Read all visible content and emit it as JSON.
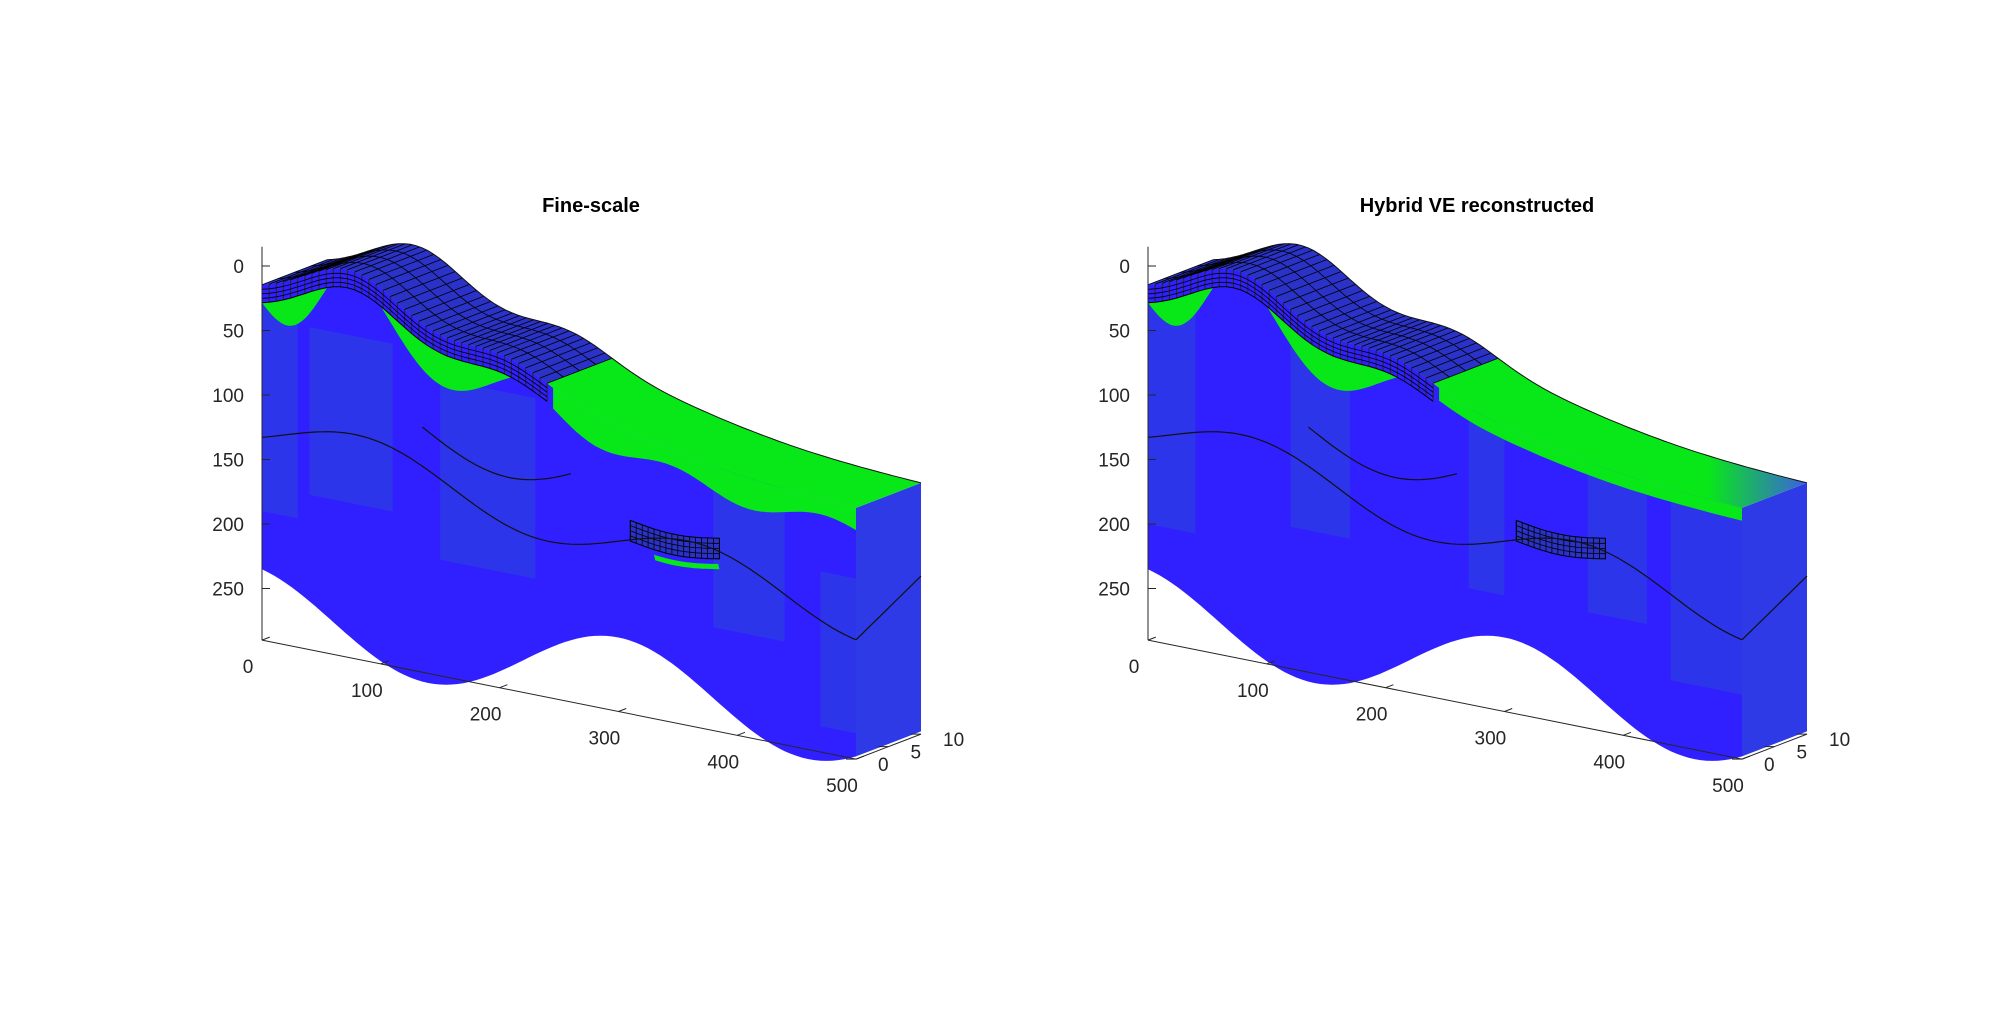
{
  "figure": {
    "background": "#ffffff"
  },
  "chart_data": [
    {
      "type": "heatmap",
      "title": "Fine-scale",
      "xlabel": "",
      "ylabel": "",
      "zlabel": "",
      "x_ticks": [
        "0",
        "100",
        "200",
        "300",
        "400",
        "500"
      ],
      "y_ticks": [
        "0",
        "5",
        "10"
      ],
      "z_ticks": [
        "0",
        "50",
        "100",
        "150",
        "200",
        "250"
      ],
      "xlim": [
        0,
        500
      ],
      "ylim": [
        0,
        10
      ],
      "zlim": [
        0,
        290
      ],
      "z_reversed": true,
      "view": "3d",
      "colors": {
        "brine": "#3020ff",
        "co2": "#08e818",
        "mixed": "#2d3ae6",
        "grid_lines": "#000000"
      },
      "features": [
        "wavy-top-surface",
        "co2-plume-under-caprock",
        "fine-grid-region-top",
        "fine-grid-region-lens",
        "internal-horizon-line",
        "internal-short-horizon-line"
      ]
    },
    {
      "type": "heatmap",
      "title": "Hybrid VE reconstructed",
      "xlabel": "",
      "ylabel": "",
      "zlabel": "",
      "x_ticks": [
        "0",
        "100",
        "200",
        "300",
        "400",
        "500"
      ],
      "y_ticks": [
        "0",
        "5",
        "10"
      ],
      "z_ticks": [
        "0",
        "50",
        "100",
        "150",
        "200",
        "250"
      ],
      "xlim": [
        0,
        500
      ],
      "ylim": [
        0,
        10
      ],
      "zlim": [
        0,
        290
      ],
      "z_reversed": true,
      "view": "3d",
      "colors": {
        "brine": "#3020ff",
        "co2": "#08e818",
        "mixed": "#2d3ae6",
        "grid_lines": "#000000"
      },
      "features": [
        "wavy-top-surface",
        "co2-plume-under-caprock",
        "fine-grid-region-top",
        "fine-grid-region-lens",
        "internal-horizon-line",
        "internal-short-horizon-line"
      ]
    }
  ]
}
